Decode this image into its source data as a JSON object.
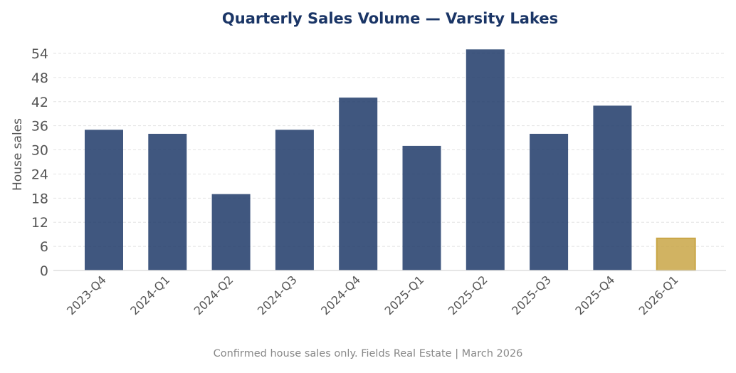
{
  "chart_data": {
    "type": "bar",
    "title": "Quarterly Sales Volume — Varsity Lakes",
    "xlabel": "",
    "ylabel": "House sales",
    "categories": [
      "2023-Q4",
      "2024-Q1",
      "2024-Q2",
      "2024-Q3",
      "2024-Q4",
      "2025-Q1",
      "2025-Q2",
      "2025-Q3",
      "2025-Q4",
      "2026-Q1"
    ],
    "values": [
      35,
      34,
      19,
      35,
      43,
      31,
      55,
      34,
      41,
      8
    ],
    "ylim": [
      0,
      56
    ],
    "yticks": [
      0,
      6,
      12,
      18,
      24,
      30,
      36,
      42,
      48,
      54
    ],
    "grid": true,
    "colors": {
      "bar": "#1f3a68",
      "highlight": "#c9a646",
      "title": "#1a3566"
    },
    "highlight_category": "2026-Q1",
    "footnote": "Confirmed house sales only. Fields Real Estate | March 2026"
  }
}
